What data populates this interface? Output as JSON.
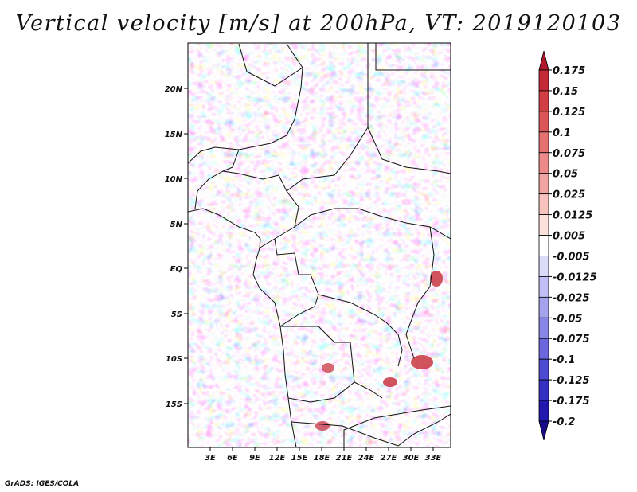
{
  "title": "Vertical velocity [m/s] at 200hPa, VT: 2019120103",
  "credit": "GrADS: IGES/COLA",
  "map": {
    "lat_labels": [
      "20N",
      "15N",
      "10N",
      "5N",
      "EQ",
      "5S",
      "10S",
      "15S"
    ],
    "lon_labels": [
      "3E",
      "6E",
      "9E",
      "12E",
      "15E",
      "18E",
      "21E",
      "24E",
      "27E",
      "30E",
      "33E"
    ]
  },
  "colorbar": {
    "labels": [
      "0.175",
      "0.15",
      "0.125",
      "0.1",
      "0.075",
      "0.05",
      "0.025",
      "0.0125",
      "0.005",
      "-0.005",
      "-0.0125",
      "-0.025",
      "-0.05",
      "-0.075",
      "-0.1",
      "-0.125",
      "-0.175",
      "-0.2"
    ],
    "colors": [
      "#b2182b",
      "#c42a35",
      "#d13f44",
      "#db5757",
      "#e47070",
      "#ec8a89",
      "#f2a4a2",
      "#f8c2be",
      "#fce0dc",
      "#ffffff",
      "#dcdcfa",
      "#c1bff5",
      "#a5a3ee",
      "#8886e6",
      "#6b68de",
      "#4e4bd2",
      "#3431c2",
      "#2119ad",
      "#160c8a"
    ]
  }
}
